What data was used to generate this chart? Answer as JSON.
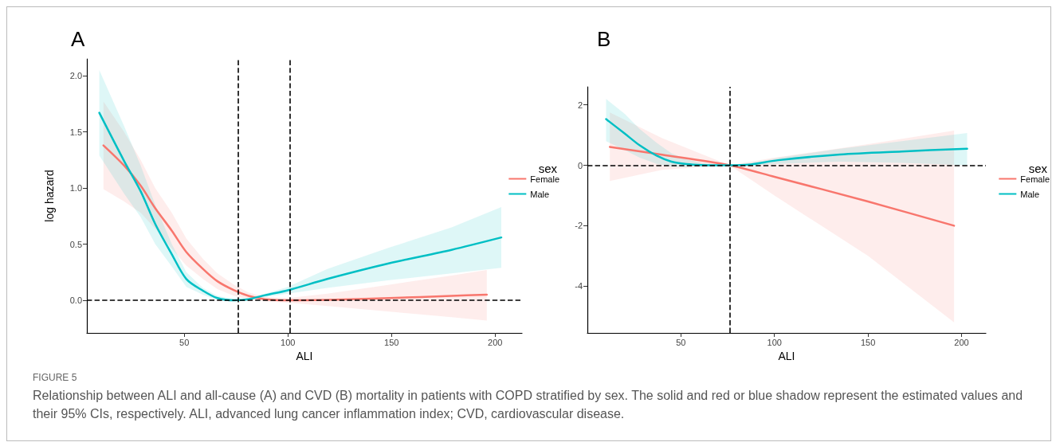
{
  "chart_data": [
    {
      "type": "line",
      "title": "A",
      "xlabel": "ALI",
      "ylabel": "log hazard",
      "legend_title": "sex",
      "legend": "right",
      "grid": false,
      "marker": "none",
      "line_style": "solid",
      "xlim": [
        3,
        213
      ],
      "xticks": [
        50,
        100,
        150,
        200
      ],
      "ylim": [
        -0.29,
        2.15
      ],
      "yticks": [
        {
          "value": 0,
          "label": "0.0"
        },
        {
          "value": 0.5,
          "label": "0.5"
        },
        {
          "value": 1,
          "label": "1.0"
        },
        {
          "value": 1.5,
          "label": "1.5"
        },
        {
          "value": 2,
          "label": "2.0"
        }
      ],
      "series": [
        {
          "name": "Female",
          "color": "#f8766d",
          "x": [
            11,
            21,
            29,
            36,
            44,
            51,
            59,
            66,
            74,
            81,
            89,
            100,
            119,
            149,
            179,
            196
          ],
          "values": [
            1.38,
            1.2,
            1.02,
            0.82,
            0.62,
            0.43,
            0.28,
            0.17,
            0.09,
            0.04,
            0.01,
            0.0,
            0.005,
            0.02,
            0.04,
            0.05
          ],
          "upper": [
            1.77,
            1.5,
            1.25,
            1.0,
            0.78,
            0.55,
            0.37,
            0.24,
            0.14,
            0.07,
            0.03,
            0.02,
            0.06,
            0.14,
            0.22,
            0.27
          ],
          "lower": [
            0.99,
            0.88,
            0.78,
            0.64,
            0.46,
            0.31,
            0.19,
            0.1,
            0.04,
            0.01,
            -0.01,
            -0.02,
            -0.05,
            -0.1,
            -0.15,
            -0.18
          ]
        },
        {
          "name": "Male",
          "color": "#00bfc4",
          "x": [
            9,
            21,
            29,
            36,
            44,
            51,
            59,
            66,
            74,
            81,
            89,
            100,
            119,
            149,
            179,
            203
          ],
          "values": [
            1.67,
            1.24,
            0.97,
            0.68,
            0.41,
            0.19,
            0.086,
            0.02,
            0.0,
            0.01,
            0.046,
            0.09,
            0.19,
            0.33,
            0.45,
            0.56
          ],
          "upper": [
            2.05,
            1.55,
            1.2,
            0.85,
            0.5,
            0.25,
            0.11,
            0.04,
            0.01,
            0.02,
            0.06,
            0.12,
            0.28,
            0.47,
            0.65,
            0.83
          ],
          "lower": [
            1.29,
            0.95,
            0.74,
            0.5,
            0.3,
            0.12,
            0.05,
            0.0,
            -0.01,
            0.0,
            0.03,
            0.06,
            0.11,
            0.18,
            0.24,
            0.29
          ]
        }
      ],
      "ref_lines": [
        {
          "axis": "x",
          "value": 76,
          "line_style": "dashed",
          "color": "#000000"
        },
        {
          "axis": "x",
          "value": 101,
          "line_style": "dashed",
          "color": "#000000"
        },
        {
          "axis": "y",
          "value": 0,
          "line_style": "dashed",
          "color": "#000000"
        }
      ],
      "annotations": [
        "FIGURE 5",
        "Relationship between ALI and all-cause (A) and CVD (B) mortality in patients with COPD stratified by sex. The solid and red or blue shadow represent the estimated values and their 95% CIs, respectively. ALI, advanced lung cancer inflammation index; CVD, cardiovascular disease."
      ]
    },
    {
      "type": "line",
      "title": "B",
      "xlabel": "ALI",
      "legend_title": "sex",
      "legend": "right",
      "grid": false,
      "marker": "none",
      "line_style": "solid",
      "xlim": [
        0,
        213
      ],
      "xticks": [
        50,
        100,
        150,
        200
      ],
      "ylim": [
        -5.55,
        2.6
      ],
      "yticks": [
        -4,
        -2,
        0,
        2
      ],
      "series": [
        {
          "name": "Female",
          "color": "#f8766d",
          "x": [
            12,
            40,
            76,
            100,
            150,
            196
          ],
          "values": [
            0.61,
            0.35,
            0.0,
            -0.38,
            -1.2,
            -2.0
          ],
          "upper": [
            1.75,
            0.9,
            0.0,
            0.25,
            0.7,
            1.15
          ],
          "lower": [
            -0.52,
            -0.15,
            0.0,
            -1.0,
            -3.0,
            -5.2
          ]
        },
        {
          "name": "Male",
          "color": "#00bfc4",
          "x": [
            10,
            20,
            28,
            37,
            45,
            53,
            61,
            76,
            86,
            102,
            135,
            168,
            203
          ],
          "values": [
            1.53,
            1.05,
            0.66,
            0.32,
            0.12,
            0.04,
            0.01,
            0.0,
            0.02,
            0.17,
            0.36,
            0.46,
            0.55
          ],
          "upper": [
            2.2,
            1.7,
            1.2,
            0.75,
            0.4,
            0.2,
            0.08,
            0.0,
            0.05,
            0.25,
            0.55,
            0.8,
            1.07
          ],
          "lower": [
            0.8,
            0.5,
            0.25,
            0.05,
            -0.05,
            -0.06,
            -0.04,
            0.0,
            -0.01,
            0.05,
            0.12,
            0.08,
            0.0
          ]
        }
      ],
      "ref_lines": [
        {
          "axis": "x",
          "value": 76,
          "line_style": "dashed",
          "color": "#000000"
        },
        {
          "axis": "y",
          "value": 0,
          "line_style": "dashed",
          "color": "#000000"
        }
      ]
    }
  ]
}
